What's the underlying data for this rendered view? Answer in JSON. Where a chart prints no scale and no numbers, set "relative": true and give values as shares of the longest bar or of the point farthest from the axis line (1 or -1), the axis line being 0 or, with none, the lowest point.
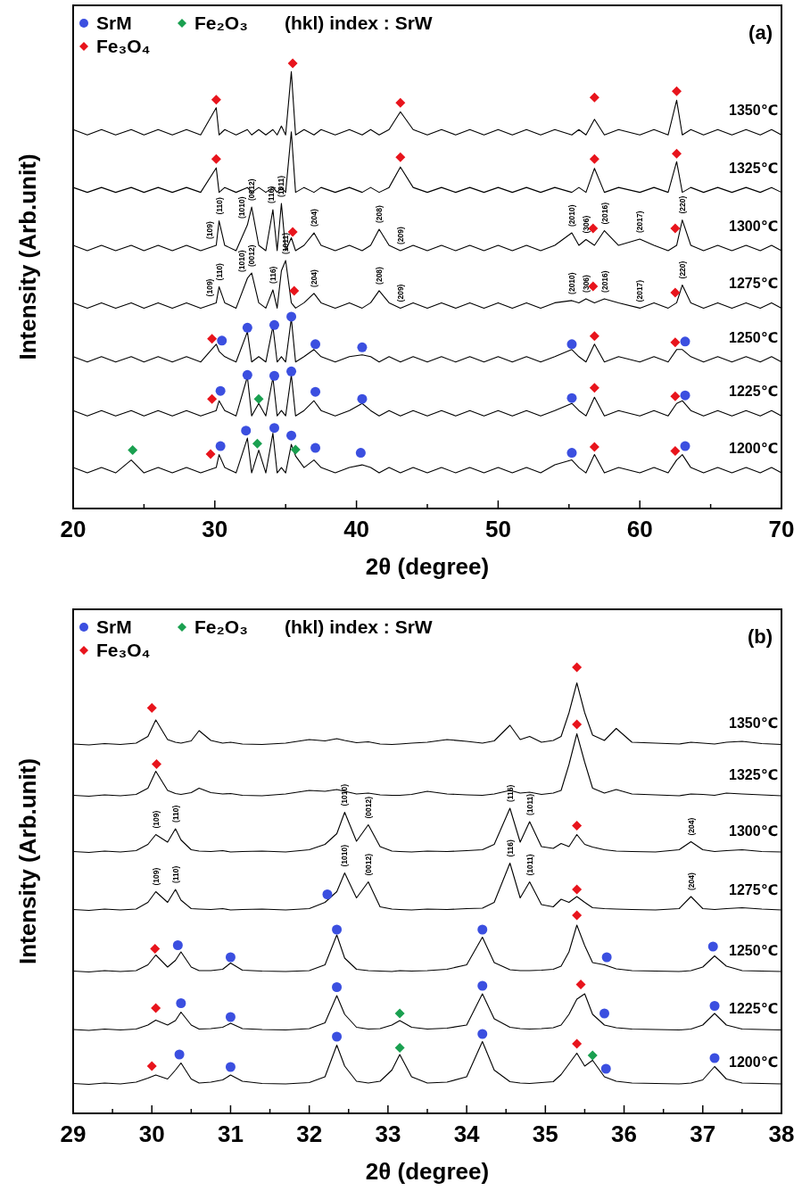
{
  "chart_data": [
    {
      "type": "line",
      "title": "(a)",
      "xlabel": "2θ (degree)",
      "ylabel": "Intensity (Arb.unit)",
      "relative": true,
      "legend": "top left",
      "xlim": [
        20,
        70
      ],
      "xticks": [
        20,
        {
          "value": 25,
          "label": null
        },
        30,
        {
          "value": 35,
          "label": null
        },
        40,
        {
          "value": 45,
          "label": null
        },
        50,
        {
          "value": 55,
          "label": null
        },
        60,
        {
          "value": 65,
          "label": null
        },
        70
      ],
      "x": [
        20,
        21,
        22,
        23,
        24.1,
        25,
        26,
        27,
        28,
        29,
        30.1,
        30.3,
        30.7,
        31.5,
        32.3,
        32.6,
        33.1,
        33.6,
        34.1,
        34.4,
        34.7,
        35.0,
        35.4,
        35.7,
        36.3,
        37.0,
        37.5,
        38.5,
        39.5,
        40.4,
        41,
        41.6,
        42.3,
        43.1,
        44,
        45,
        46,
        47,
        48,
        49,
        50,
        51,
        52,
        53,
        54,
        55.2,
        55.7,
        56.2,
        56.8,
        57.5,
        58.5,
        60,
        61,
        62,
        62.6,
        63.0,
        63.6,
        64.5,
        65.5,
        66.5,
        67.5,
        68.5,
        69.3,
        70
      ],
      "series": [
        {
          "name": "1350℃",
          "color": "#000000",
          "values": [
            0.851,
            0.839,
            0.851,
            0.839,
            0.851,
            0.839,
            0.851,
            0.839,
            0.851,
            0.839,
            0.9,
            0.839,
            0.851,
            0.839,
            0.851,
            0.839,
            0.851,
            0.839,
            0.851,
            0.839,
            0.859,
            0.839,
            0.981,
            0.839,
            0.851,
            0.839,
            0.851,
            0.839,
            0.851,
            0.839,
            0.851,
            0.839,
            0.851,
            0.891,
            0.851,
            0.839,
            0.851,
            0.839,
            0.851,
            0.839,
            0.851,
            0.839,
            0.851,
            0.839,
            0.851,
            0.839,
            0.851,
            0.839,
            0.874,
            0.839,
            0.851,
            0.839,
            0.851,
            0.839,
            0.917,
            0.839,
            0.851,
            0.839,
            0.851,
            0.839,
            0.851,
            0.839,
            0.851,
            0.839
          ]
        },
        {
          "name": "1325℃",
          "color": "#000000",
          "values": [
            0.721,
            0.71,
            0.721,
            0.71,
            0.721,
            0.71,
            0.721,
            0.71,
            0.721,
            0.71,
            0.765,
            0.71,
            0.721,
            0.71,
            0.721,
            0.71,
            0.721,
            0.71,
            0.721,
            0.71,
            0.721,
            0.71,
            0.846,
            0.71,
            0.721,
            0.71,
            0.721,
            0.71,
            0.721,
            0.71,
            0.721,
            0.71,
            0.721,
            0.767,
            0.721,
            0.71,
            0.721,
            0.71,
            0.721,
            0.71,
            0.721,
            0.71,
            0.721,
            0.71,
            0.721,
            0.71,
            0.721,
            0.71,
            0.764,
            0.71,
            0.721,
            0.71,
            0.721,
            0.71,
            0.779,
            0.71,
            0.721,
            0.71,
            0.721,
            0.71,
            0.721,
            0.71,
            0.721,
            0.71
          ]
        },
        {
          "name": "1300℃",
          "color": "#000000",
          "values": [
            0.591,
            0.579,
            0.591,
            0.579,
            0.591,
            0.579,
            0.591,
            0.579,
            0.591,
            0.579,
            0.591,
            0.646,
            0.591,
            0.579,
            0.637,
            0.677,
            0.591,
            0.579,
            0.671,
            0.579,
            0.685,
            0.579,
            0.608,
            0.579,
            0.591,
            0.619,
            0.591,
            0.579,
            0.591,
            0.579,
            0.591,
            0.627,
            0.591,
            0.579,
            0.591,
            0.579,
            0.591,
            0.579,
            0.591,
            0.579,
            0.591,
            0.579,
            0.591,
            0.579,
            0.591,
            0.619,
            0.591,
            0.604,
            0.591,
            0.624,
            0.591,
            0.605,
            0.591,
            0.579,
            0.591,
            0.648,
            0.591,
            0.579,
            0.591,
            0.579,
            0.591,
            0.579,
            0.591,
            0.579
          ]
        },
        {
          "name": "1275℃",
          "color": "#000000",
          "values": [
            0.462,
            0.45,
            0.462,
            0.45,
            0.462,
            0.45,
            0.462,
            0.45,
            0.462,
            0.45,
            0.462,
            0.498,
            0.462,
            0.45,
            0.517,
            0.529,
            0.462,
            0.45,
            0.491,
            0.45,
            0.534,
            0.557,
            0.462,
            0.45,
            0.462,
            0.483,
            0.462,
            0.45,
            0.462,
            0.45,
            0.462,
            0.489,
            0.462,
            0.45,
            0.462,
            0.45,
            0.462,
            0.45,
            0.462,
            0.45,
            0.462,
            0.45,
            0.462,
            0.45,
            0.462,
            0.467,
            0.462,
            0.471,
            0.462,
            0.471,
            0.462,
            0.45,
            0.462,
            0.45,
            0.462,
            0.502,
            0.462,
            0.45,
            0.462,
            0.45,
            0.462,
            0.45,
            0.462,
            0.45
          ]
        },
        {
          "name": "1250℃",
          "color": "#000000",
          "values": [
            0.341,
            0.329,
            0.341,
            0.329,
            0.341,
            0.329,
            0.341,
            0.329,
            0.341,
            0.329,
            0.369,
            0.353,
            0.341,
            0.329,
            0.397,
            0.329,
            0.341,
            0.329,
            0.409,
            0.329,
            0.341,
            0.329,
            0.427,
            0.329,
            0.341,
            0.357,
            0.341,
            0.329,
            0.341,
            0.345,
            0.341,
            0.329,
            0.341,
            0.329,
            0.341,
            0.329,
            0.341,
            0.329,
            0.341,
            0.329,
            0.341,
            0.329,
            0.341,
            0.329,
            0.341,
            0.357,
            0.341,
            0.329,
            0.369,
            0.329,
            0.341,
            0.329,
            0.341,
            0.329,
            0.357,
            0.357,
            0.341,
            0.329,
            0.341,
            0.329,
            0.341,
            0.329,
            0.341,
            0.329
          ]
        },
        {
          "name": "1225℃",
          "color": "#000000",
          "values": [
            0.22,
            0.208,
            0.22,
            0.208,
            0.22,
            0.208,
            0.22,
            0.208,
            0.22,
            0.208,
            0.22,
            0.242,
            0.22,
            0.208,
            0.296,
            0.208,
            0.236,
            0.208,
            0.294,
            0.208,
            0.22,
            0.208,
            0.3,
            0.208,
            0.22,
            0.242,
            0.22,
            0.208,
            0.22,
            0.236,
            0.22,
            0.208,
            0.22,
            0.208,
            0.22,
            0.208,
            0.22,
            0.208,
            0.22,
            0.208,
            0.22,
            0.208,
            0.22,
            0.208,
            0.22,
            0.236,
            0.22,
            0.208,
            0.25,
            0.208,
            0.22,
            0.208,
            0.22,
            0.208,
            0.236,
            0.242,
            0.22,
            0.208,
            0.22,
            0.208,
            0.22,
            0.208,
            0.22,
            0.208
          ]
        },
        {
          "name": "1200℃",
          "color": "#000000",
          "values": [
            0.092,
            0.08,
            0.092,
            0.08,
            0.109,
            0.08,
            0.092,
            0.08,
            0.092,
            0.08,
            0.092,
            0.121,
            0.092,
            0.08,
            0.158,
            0.08,
            0.131,
            0.08,
            0.169,
            0.08,
            0.092,
            0.08,
            0.144,
            0.118,
            0.092,
            0.109,
            0.092,
            0.08,
            0.092,
            0.098,
            0.092,
            0.08,
            0.092,
            0.08,
            0.092,
            0.08,
            0.092,
            0.08,
            0.092,
            0.08,
            0.092,
            0.08,
            0.092,
            0.08,
            0.098,
            0.109,
            0.092,
            0.08,
            0.121,
            0.08,
            0.092,
            0.08,
            0.092,
            0.08,
            0.109,
            0.121,
            0.092,
            0.08,
            0.092,
            0.08,
            0.092,
            0.08,
            0.092,
            0.08
          ]
        },
        {
          "name": "SrM",
          "type": "scatter",
          "marker": "circle",
          "color": "#3b4fe0",
          "x": [
            30.5,
            32.3,
            34.2,
            35.4,
            37.1,
            40.4,
            55.2,
            63.2,
            30.4,
            32.3,
            34.2,
            35.4,
            37.1,
            40.4,
            55.2,
            63.2,
            30.4,
            32.2,
            34.2,
            35.4,
            37.1,
            40.3,
            55.2,
            63.2
          ],
          "values": [
            0.377,
            0.406,
            0.412,
            0.431,
            0.369,
            0.362,
            0.369,
            0.375,
            0.264,
            0.3,
            0.298,
            0.308,
            0.262,
            0.246,
            0.248,
            0.254,
            0.14,
            0.175,
            0.181,
            0.164,
            0.136,
            0.125,
            0.125,
            0.14
          ]
        },
        {
          "name": "Fe₂O₃",
          "type": "scatter",
          "marker": "diamond",
          "color": "#1aa050",
          "x": [
            33.1,
            24.2,
            33.0,
            35.7
          ],
          "values": [
            0.246,
            0.131,
            0.146,
            0.132
          ]
        },
        {
          "name": "Fe₃O₄",
          "type": "scatter",
          "marker": "diamond",
          "color": "#e8141c",
          "x": [
            30.1,
            35.5,
            43.1,
            56.8,
            62.6,
            30.1,
            43.1,
            56.8,
            62.6,
            35.5,
            56.7,
            62.5,
            35.6,
            56.7,
            62.5,
            29.8,
            56.8,
            62.5,
            29.8,
            56.8,
            62.5,
            29.7,
            56.8,
            62.5
          ],
          "values": [
            0.918,
            1,
            0.911,
            0.923,
            0.937,
            0.785,
            0.789,
            0.785,
            0.797,
            0.621,
            0.629,
            0.629,
            0.489,
            0.499,
            0.485,
            0.381,
            0.387,
            0.373,
            0.246,
            0.271,
            0.252,
            0.122,
            0.138,
            0.129
          ]
        }
      ],
      "annotations": [
        "(hkl) index : SrW",
        {
          "text": "(109)",
          "x": 30.1,
          "y": 0.591
        },
        {
          "text": "(110)",
          "x": 30.3,
          "y": 0.646
        },
        {
          "text": "(1010)",
          "x": 32.3,
          "y": 0.637
        },
        {
          "text": "(0012)",
          "x": 32.6,
          "y": 0.677
        },
        {
          "text": "(116)",
          "x": 34.1,
          "y": 0.671
        },
        {
          "text": "(1011)",
          "x": 34.7,
          "y": 0.685
        },
        {
          "text": "(204)",
          "x": 37.0,
          "y": 0.619
        },
        {
          "text": "(208)",
          "x": 41.6,
          "y": 0.627
        },
        {
          "text": "(209)",
          "x": 43.1,
          "y": 0.579
        },
        {
          "text": "(2010)",
          "x": 55.2,
          "y": 0.619
        },
        {
          "text": "(306)",
          "x": 56.2,
          "y": 0.604
        },
        {
          "text": "(2016)",
          "x": 57.5,
          "y": 0.624
        },
        {
          "text": "(2017)",
          "x": 60,
          "y": 0.605
        },
        {
          "text": "(220)",
          "x": 63.0,
          "y": 0.648
        },
        {
          "text": "(109)",
          "x": 30.1,
          "y": 0.462
        },
        {
          "text": "(110)",
          "x": 30.3,
          "y": 0.498
        },
        {
          "text": "(1010)",
          "x": 32.3,
          "y": 0.517
        },
        {
          "text": "(0012)",
          "x": 32.6,
          "y": 0.529
        },
        {
          "text": "(116)",
          "x": 34.1,
          "y": 0.491
        },
        {
          "text": "(1011)",
          "x": 35.0,
          "y": 0.557
        },
        {
          "text": "(204)",
          "x": 37.0,
          "y": 0.483
        },
        {
          "text": "(208)",
          "x": 41.6,
          "y": 0.489
        },
        {
          "text": "(209)",
          "x": 43.1,
          "y": 0.45
        },
        {
          "text": "(2010)",
          "x": 55.2,
          "y": 0.467
        },
        {
          "text": "(306)",
          "x": 56.2,
          "y": 0.471
        },
        {
          "text": "(2016)",
          "x": 57.5,
          "y": 0.471
        },
        {
          "text": "(2017)",
          "x": 60,
          "y": 0.45
        },
        {
          "text": "(220)",
          "x": 63.0,
          "y": 0.502
        }
      ]
    },
    {
      "type": "line",
      "title": "(b)",
      "xlabel": "2θ (degree)",
      "ylabel": "Intensity (Arb.unit)",
      "relative": true,
      "legend": "top left",
      "xlim": [
        29,
        38
      ],
      "xticks": [
        29,
        {
          "value": 29.5,
          "label": null
        },
        30,
        {
          "value": 30.5,
          "label": null
        },
        31,
        {
          "value": 31.5,
          "label": null
        },
        32,
        {
          "value": 32.5,
          "label": null
        },
        33,
        {
          "value": 33.5,
          "label": null
        },
        34,
        {
          "value": 34.5,
          "label": null
        },
        35,
        {
          "value": 35.5,
          "label": null
        },
        36,
        {
          "value": 36.5,
          "label": null
        },
        37,
        {
          "value": 37.5,
          "label": null
        },
        38
      ],
      "x": [
        29,
        29.2,
        29.4,
        29.6,
        29.8,
        29.95,
        30.05,
        30.2,
        30.3,
        30.37,
        30.5,
        30.6,
        30.75,
        30.9,
        31.0,
        31.15,
        31.4,
        31.7,
        32.0,
        32.2,
        32.35,
        32.45,
        32.6,
        32.75,
        32.9,
        33.05,
        33.15,
        33.3,
        33.5,
        33.75,
        34.0,
        34.2,
        34.35,
        34.55,
        34.68,
        34.8,
        34.95,
        35.1,
        35.2,
        35.3,
        35.4,
        35.5,
        35.6,
        35.75,
        35.9,
        36.1,
        36.4,
        36.7,
        36.85,
        37.0,
        37.15,
        37.3,
        37.5,
        37.75,
        38
      ],
      "series": [
        {
          "name": "1350℃",
          "color": "#000000",
          "values": [
            0.828,
            0.826,
            0.829,
            0.827,
            0.83,
            0.845,
            0.882,
            0.838,
            0.832,
            0.83,
            0.835,
            0.858,
            0.836,
            0.83,
            0.832,
            0.828,
            0.827,
            0.83,
            0.838,
            0.835,
            0.84,
            0.836,
            0.831,
            0.833,
            0.828,
            0.827,
            0.828,
            0.83,
            0.832,
            0.838,
            0.834,
            0.83,
            0.835,
            0.87,
            0.838,
            0.845,
            0.832,
            0.836,
            0.845,
            0.898,
            0.965,
            0.898,
            0.848,
            0.836,
            0.863,
            0.832,
            0.83,
            0.828,
            0.832,
            0.83,
            0.828,
            0.832,
            0.834,
            0.829,
            0.827
          ]
        },
        {
          "name": "1325℃",
          "color": "#000000",
          "values": [
            0.713,
            0.711,
            0.714,
            0.712,
            0.715,
            0.729,
            0.767,
            0.724,
            0.717,
            0.715,
            0.719,
            0.729,
            0.719,
            0.716,
            0.717,
            0.713,
            0.712,
            0.716,
            0.724,
            0.722,
            0.726,
            0.722,
            0.716,
            0.718,
            0.714,
            0.713,
            0.713,
            0.715,
            0.722,
            0.716,
            0.714,
            0.713,
            0.716,
            0.724,
            0.718,
            0.72,
            0.715,
            0.718,
            0.724,
            0.782,
            0.851,
            0.787,
            0.729,
            0.718,
            0.726,
            0.716,
            0.714,
            0.712,
            0.716,
            0.715,
            0.713,
            0.718,
            0.716,
            0.714,
            0.712
          ]
        },
        {
          "name": "1300℃",
          "color": "#000000",
          "values": [
            0.587,
            0.585,
            0.588,
            0.586,
            0.589,
            0.603,
            0.625,
            0.608,
            0.638,
            0.613,
            0.591,
            0.588,
            0.587,
            0.589,
            0.586,
            0.587,
            0.588,
            0.586,
            0.591,
            0.603,
            0.627,
            0.675,
            0.61,
            0.647,
            0.598,
            0.588,
            0.587,
            0.586,
            0.588,
            0.587,
            0.589,
            0.591,
            0.603,
            0.684,
            0.608,
            0.654,
            0.598,
            0.594,
            0.605,
            0.598,
            0.625,
            0.603,
            0.597,
            0.591,
            0.588,
            0.587,
            0.586,
            0.591,
            0.609,
            0.591,
            0.587,
            0.589,
            0.591,
            0.587,
            0.586
          ]
        },
        {
          "name": "1275℃",
          "color": "#000000",
          "values": [
            0.457,
            0.455,
            0.458,
            0.456,
            0.458,
            0.473,
            0.497,
            0.473,
            0.502,
            0.478,
            0.459,
            0.458,
            0.457,
            0.459,
            0.456,
            0.457,
            0.458,
            0.456,
            0.459,
            0.473,
            0.497,
            0.539,
            0.483,
            0.519,
            0.463,
            0.458,
            0.457,
            0.456,
            0.458,
            0.457,
            0.459,
            0.46,
            0.473,
            0.561,
            0.483,
            0.519,
            0.468,
            0.463,
            0.48,
            0.473,
            0.486,
            0.473,
            0.461,
            0.459,
            0.458,
            0.457,
            0.456,
            0.459,
            0.486,
            0.459,
            0.457,
            0.459,
            0.461,
            0.458,
            0.456
          ]
        },
        {
          "name": "1250℃",
          "color": "#000000",
          "values": [
            0.319,
            0.317,
            0.32,
            0.318,
            0.32,
            0.333,
            0.355,
            0.328,
            0.343,
            0.362,
            0.328,
            0.32,
            0.32,
            0.323,
            0.337,
            0.321,
            0.319,
            0.318,
            0.32,
            0.333,
            0.4,
            0.348,
            0.323,
            0.32,
            0.319,
            0.318,
            0.32,
            0.319,
            0.32,
            0.323,
            0.333,
            0.395,
            0.338,
            0.322,
            0.32,
            0.32,
            0.321,
            0.323,
            0.33,
            0.362,
            0.422,
            0.376,
            0.338,
            0.333,
            0.324,
            0.32,
            0.319,
            0.318,
            0.32,
            0.328,
            0.353,
            0.33,
            0.32,
            0.319,
            0.318
          ]
        },
        {
          "name": "1225℃",
          "color": "#000000",
          "values": [
            0.188,
            0.186,
            0.189,
            0.187,
            0.189,
            0.198,
            0.209,
            0.198,
            0.208,
            0.227,
            0.198,
            0.189,
            0.19,
            0.193,
            0.202,
            0.19,
            0.188,
            0.187,
            0.19,
            0.203,
            0.264,
            0.222,
            0.193,
            0.189,
            0.19,
            0.198,
            0.208,
            0.193,
            0.189,
            0.191,
            0.198,
            0.268,
            0.212,
            0.193,
            0.19,
            0.189,
            0.19,
            0.192,
            0.198,
            0.222,
            0.256,
            0.268,
            0.222,
            0.198,
            0.192,
            0.189,
            0.188,
            0.187,
            0.189,
            0.198,
            0.224,
            0.198,
            0.189,
            0.188,
            0.187
          ]
        },
        {
          "name": "1200℃",
          "color": "#000000",
          "values": [
            0.067,
            0.065,
            0.068,
            0.066,
            0.07,
            0.079,
            0.086,
            0.077,
            0.097,
            0.113,
            0.077,
            0.068,
            0.07,
            0.075,
            0.086,
            0.072,
            0.067,
            0.066,
            0.069,
            0.082,
            0.153,
            0.106,
            0.072,
            0.068,
            0.072,
            0.097,
            0.132,
            0.082,
            0.068,
            0.07,
            0.082,
            0.161,
            0.097,
            0.071,
            0.068,
            0.067,
            0.069,
            0.071,
            0.087,
            0.111,
            0.135,
            0.106,
            0.119,
            0.082,
            0.072,
            0.068,
            0.067,
            0.066,
            0.068,
            0.075,
            0.105,
            0.077,
            0.068,
            0.067,
            0.066
          ]
        },
        {
          "name": "SrM",
          "type": "scatter",
          "marker": "circle",
          "color": "#3b4fe0",
          "x": [
            32.23,
            30.33,
            31.0,
            32.35,
            34.2,
            35.78,
            37.13,
            30.37,
            31.0,
            32.35,
            34.2,
            35.75,
            37.15,
            30.35,
            31.0,
            32.35,
            34.2,
            35.77,
            37.15
          ],
          "values": [
            0.491,
            0.377,
            0.35,
            0.412,
            0.412,
            0.35,
            0.374,
            0.247,
            0.216,
            0.283,
            0.286,
            0.224,
            0.241,
            0.132,
            0.104,
            0.172,
            0.178,
            0.1,
            0.124
          ]
        },
        {
          "name": "Fe₂O₃",
          "type": "scatter",
          "marker": "diamond",
          "color": "#1aa050",
          "x": [
            33.15,
            33.15,
            35.6
          ],
          "values": [
            0.224,
            0.147,
            0.13
          ]
        },
        {
          "name": "Fe₃O₄",
          "type": "scatter",
          "marker": "diamond",
          "color": "#e8141c",
          "x": [
            30.0,
            35.4,
            30.06,
            35.4,
            35.4,
            35.4,
            30.04,
            35.4,
            30.05,
            35.45,
            30.0,
            35.4
          ],
          "values": [
            0.909,
            1,
            0.783,
            0.872,
            0.645,
            0.502,
            0.369,
            0.444,
            0.236,
            0.289,
            0.106,
            0.156
          ]
        }
      ],
      "annotations": [
        "(hkl) index : SrW",
        {
          "text": "(109)",
          "x": 30.05,
          "y": 0.625
        },
        {
          "text": "(110)",
          "x": 30.3,
          "y": 0.638
        },
        {
          "text": "(1010)",
          "x": 32.45,
          "y": 0.675
        },
        {
          "text": "(0012)",
          "x": 32.75,
          "y": 0.647
        },
        {
          "text": "(116)",
          "x": 34.55,
          "y": 0.684
        },
        {
          "text": "(1011)",
          "x": 34.8,
          "y": 0.654
        },
        {
          "text": "(204)",
          "x": 36.85,
          "y": 0.609
        },
        {
          "text": "(109)",
          "x": 30.05,
          "y": 0.497
        },
        {
          "text": "(110)",
          "x": 30.3,
          "y": 0.502
        },
        {
          "text": "(1010)",
          "x": 32.45,
          "y": 0.539
        },
        {
          "text": "(0012)",
          "x": 32.75,
          "y": 0.519
        },
        {
          "text": "(116)",
          "x": 34.55,
          "y": 0.561
        },
        {
          "text": "(1011)",
          "x": 34.8,
          "y": 0.519
        },
        {
          "text": "(204)",
          "x": 36.85,
          "y": 0.486
        }
      ]
    }
  ]
}
